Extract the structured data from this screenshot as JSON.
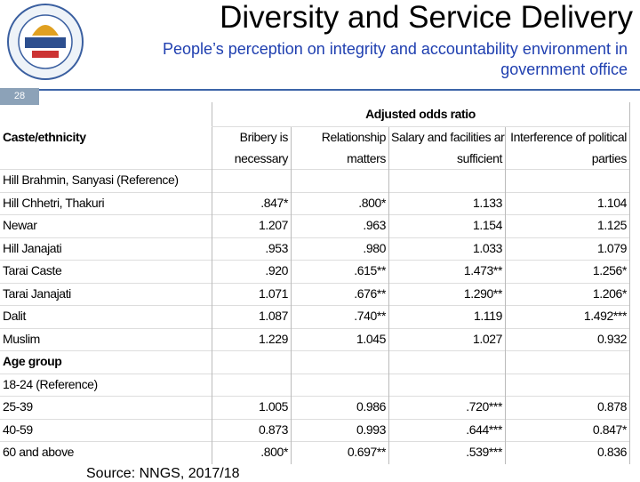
{
  "header": {
    "title": "Diversity and Service Delivery",
    "subtitle": "People’s perception on integrity and accountability environment in government office",
    "slide_number": "28"
  },
  "table": {
    "group_header": "Adjusted odds ratio",
    "row_header": "Caste/ethnicity",
    "columns": [
      [
        "Bribery is",
        "necessary"
      ],
      [
        "Relationship",
        "matters"
      ],
      [
        "Salary and facilities are",
        "sufficient"
      ],
      [
        "Interference of political",
        "parties"
      ]
    ],
    "rows": [
      {
        "label": "Hill Brahmin, Sanyasi  (Reference)"
      },
      {
        "label": "Hill Chhetri, Thakuri",
        "values": [
          ".847*",
          ".800*",
          "1.133",
          "1.104"
        ]
      },
      {
        "label": "Newar",
        "values": [
          "1.207",
          ".963",
          "1.154",
          "1.125"
        ]
      },
      {
        "label": "Hill Janajati",
        "values": [
          ".953",
          ".980",
          "1.033",
          "1.079"
        ]
      },
      {
        "label": "Tarai Caste",
        "values": [
          ".920",
          ".615**",
          "1.473**",
          "1.256*"
        ]
      },
      {
        "label": "Tarai Janajati",
        "values": [
          "1.071",
          ".676**",
          "1.290**",
          "1.206*"
        ]
      },
      {
        "label": "Dalit",
        "values": [
          "1.087",
          ".740**",
          "1.119",
          "1.492***"
        ]
      },
      {
        "label": "Muslim",
        "values": [
          "1.229",
          "1.045",
          "1.027",
          "0.932"
        ]
      },
      {
        "label": "Age group"
      },
      {
        "label": "18-24  (Reference)"
      },
      {
        "label": "25-39",
        "values": [
          "1.005",
          "0.986",
          ".720***",
          "0.878"
        ]
      },
      {
        "label": "40-59",
        "values": [
          "0.873",
          "0.993",
          ".644***",
          "0.847*"
        ]
      },
      {
        "label": "60 and above",
        "values": [
          ".800*",
          "0.697**",
          ".539***",
          "0.836"
        ]
      }
    ]
  },
  "source": "Source: NNGS, 2017/18"
}
